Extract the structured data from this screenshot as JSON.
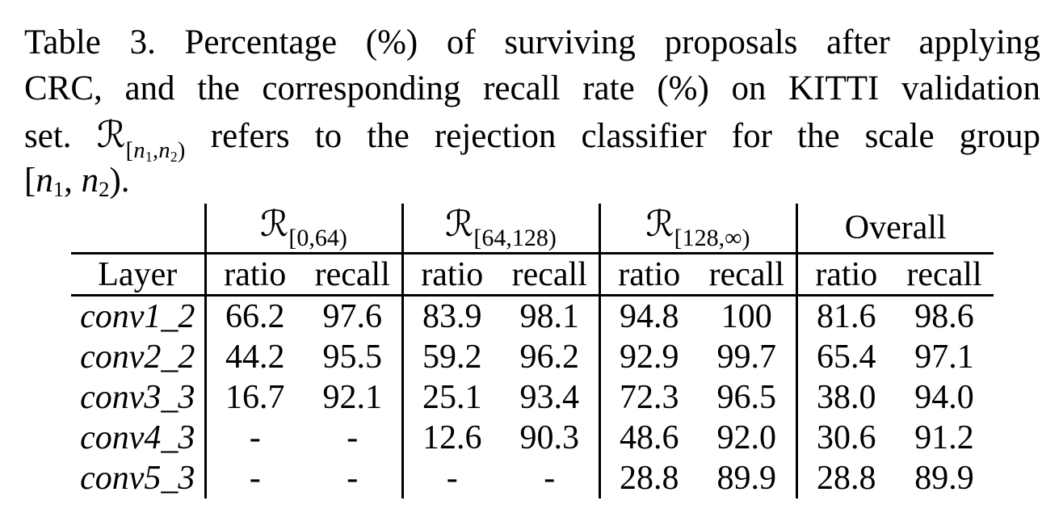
{
  "caption": {
    "line1": "Table 3. Percentage (%) of surviving proposals after applying",
    "line2": "CRC, and the corresponding recall rate (%) on KITTI validation",
    "line3_pre": "set.",
    "line3_post": "refers to the rejection classifier for the scale group"
  },
  "math": {
    "R": "ℛ",
    "sub_parts": [
      "[",
      "n",
      "1",
      ",",
      "n",
      "2",
      ")"
    ],
    "line4_parts": [
      "[",
      "n",
      "1",
      ", ",
      "n",
      "2",
      ")."
    ]
  },
  "table": {
    "layer_header": "Layer",
    "overall_label": "Overall",
    "sub_ratio": "ratio",
    "sub_recall": "recall",
    "groups": [
      {
        "sub": "[0,64)"
      },
      {
        "sub": "[64,128)"
      },
      {
        "sub": "[128,∞)"
      }
    ],
    "rows": [
      {
        "layer": "conv1_2",
        "values": [
          "66.2",
          "97.6",
          "83.9",
          "98.1",
          "94.8",
          "100",
          "81.6",
          "98.6"
        ]
      },
      {
        "layer": "conv2_2",
        "values": [
          "44.2",
          "95.5",
          "59.2",
          "96.2",
          "92.9",
          "99.7",
          "65.4",
          "97.1"
        ]
      },
      {
        "layer": "conv3_3",
        "values": [
          "16.7",
          "92.1",
          "25.1",
          "93.4",
          "72.3",
          "96.5",
          "38.0",
          "94.0"
        ]
      },
      {
        "layer": "conv4_3",
        "values": [
          "-",
          "-",
          "12.6",
          "90.3",
          "48.6",
          "92.0",
          "30.6",
          "91.2"
        ]
      },
      {
        "layer": "conv5_3",
        "values": [
          "-",
          "-",
          "-",
          "-",
          "28.8",
          "89.9",
          "28.8",
          "89.9"
        ]
      }
    ]
  }
}
